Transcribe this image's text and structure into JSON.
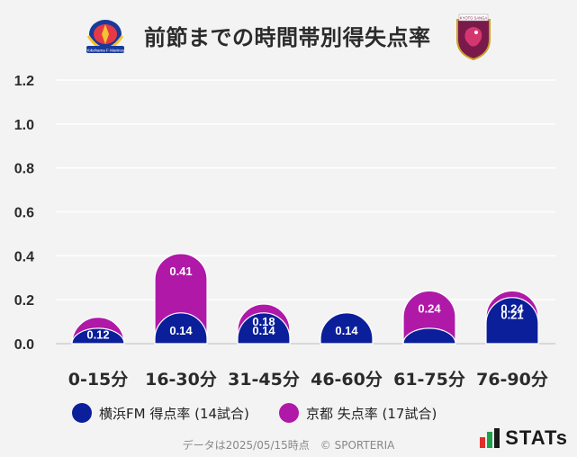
{
  "header": {
    "title": "前節までの時間帯別得失点率",
    "home_logo": "yokohama-f-marinos-crest",
    "away_logo": "kyoto-sanga-crest",
    "home_logo_text": "Yokohama F·Marinos",
    "away_logo_text": "KYOTO SANGA"
  },
  "chart_data": {
    "type": "bar",
    "stacked": false,
    "categories": [
      "0-15分",
      "16-30分",
      "31-45分",
      "46-60分",
      "61-75分",
      "76-90分"
    ],
    "series": [
      {
        "name": "京都 失点率 (17試合)",
        "color": "#b018a8",
        "values": [
          0.12,
          0.41,
          0.18,
          0.14,
          0.24,
          0.24
        ],
        "labels": [
          "0.12",
          "0.41",
          "0.18",
          "",
          "0.24",
          "0.24"
        ]
      },
      {
        "name": "横浜FM 得点率 (14試合)",
        "color": "#0b1f9b",
        "values": [
          0.07,
          0.14,
          0.14,
          0.14,
          0.07,
          0.21
        ],
        "labels": [
          "",
          "0.14",
          "0.14",
          "0.14",
          "",
          "0.21"
        ]
      }
    ],
    "yticks": [
      "0.0",
      "0.2",
      "0.4",
      "0.6",
      "0.8",
      "1.0",
      "1.2"
    ],
    "ylim": [
      0,
      1.2
    ],
    "grid": true,
    "legend_position": "bottom"
  },
  "legend": [
    {
      "label": "横浜FM 得点率 (14試合)",
      "color": "#0b1f9b"
    },
    {
      "label": "京都 失点率 (17試合)",
      "color": "#b018a8"
    }
  ],
  "footer": {
    "note": "データは2025/05/15時点　© SPORTERIA",
    "brand": "STATs"
  }
}
